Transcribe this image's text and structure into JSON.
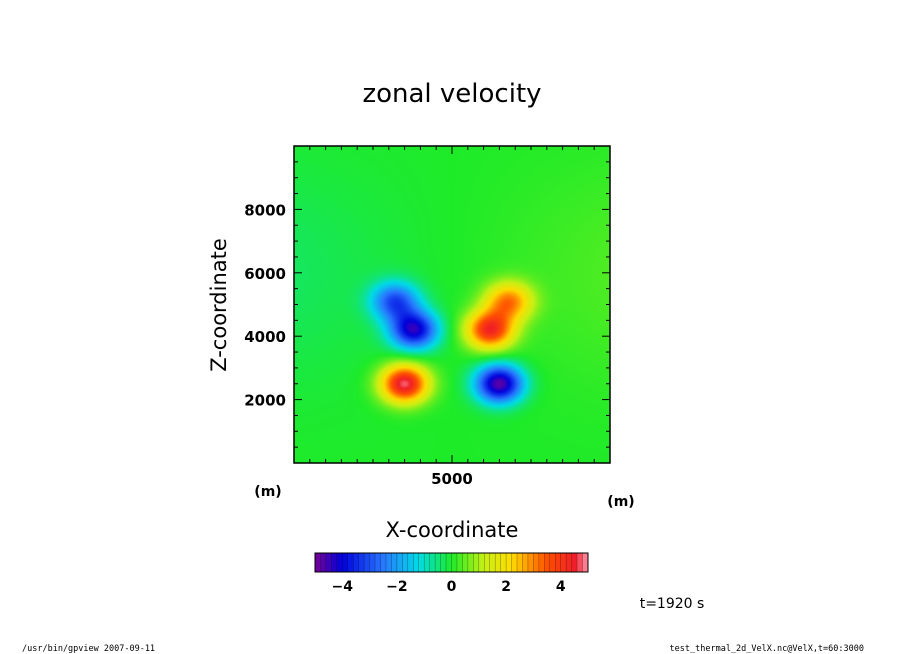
{
  "chart_data": {
    "type": "heatmap",
    "title": "zonal velocity",
    "xlabel": "X-coordinate",
    "ylabel": "Z-coordinate",
    "x_unit": "(m)",
    "y_unit": "(m)",
    "x_range": [
      0,
      10000
    ],
    "y_range": [
      0,
      10000
    ],
    "x_ticks": [
      5000
    ],
    "y_ticks": [
      2000,
      4000,
      6000,
      8000
    ],
    "field_features": [
      {
        "x": 3500,
        "z": 2500,
        "value": 4.8
      },
      {
        "x": 6500,
        "z": 2500,
        "value": -4.8
      },
      {
        "x": 3800,
        "z": 4200,
        "value": -4.2
      },
      {
        "x": 6200,
        "z": 4200,
        "value": 4.2
      },
      {
        "x": 3200,
        "z": 5100,
        "value": -3.0
      },
      {
        "x": 6800,
        "z": 5100,
        "value": 3.0
      }
    ],
    "colorbar": {
      "range": [
        -5,
        5
      ],
      "ticks": [
        "-4",
        "-2",
        "0",
        "2",
        "4"
      ]
    },
    "time_label": "t=1920 s"
  },
  "footer": {
    "left": "/usr/bin/gpview   2007-09-11",
    "right": "test_thermal_2d_VelX.nc@VelX,t=60:3000"
  }
}
